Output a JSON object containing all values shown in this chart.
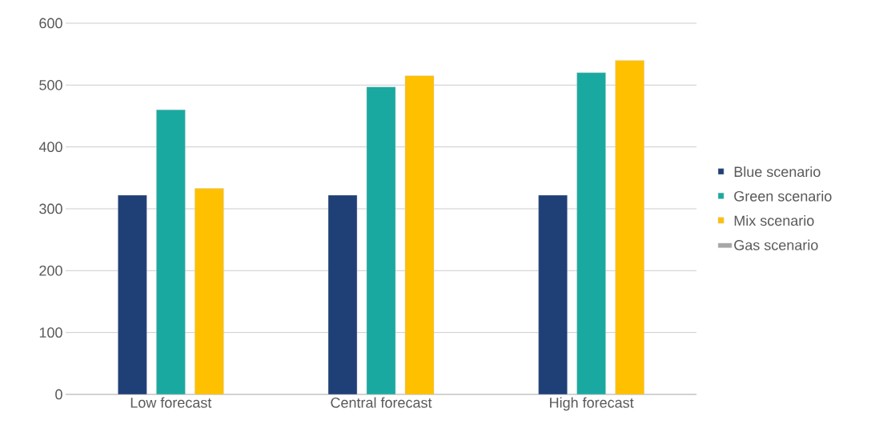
{
  "chart_data": {
    "type": "bar",
    "categories": [
      "Low forecast",
      "Central forecast",
      "High forecast"
    ],
    "series": [
      {
        "name": "Blue scenario",
        "color": "#1f3f77",
        "values": [
          322,
          322,
          322
        ]
      },
      {
        "name": "Green scenario",
        "color": "#1aa9a0",
        "values": [
          460,
          497,
          520
        ]
      },
      {
        "name": "Mix scenario",
        "color": "#ffc000",
        "values": [
          333,
          515,
          540
        ]
      },
      {
        "name": "Gas scenario",
        "color": "#a6a6a6",
        "values": [
          null,
          null,
          null
        ]
      }
    ],
    "ylim": [
      0,
      600
    ],
    "yticks": [
      0,
      100,
      200,
      300,
      400,
      500,
      600
    ],
    "grid": "y",
    "legend": "right"
  }
}
